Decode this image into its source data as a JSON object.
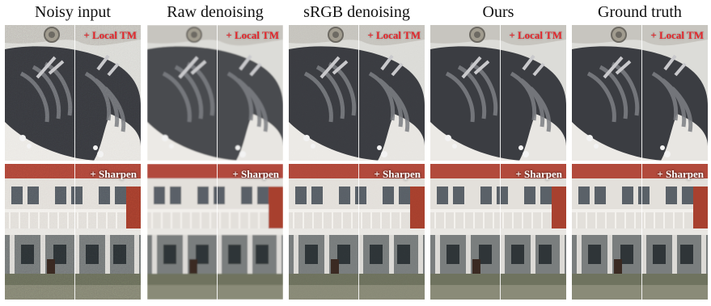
{
  "columns": [
    {
      "title": "Noisy input"
    },
    {
      "title": "Raw denoising"
    },
    {
      "title": "sRGB denoising"
    },
    {
      "title": "Ours"
    },
    {
      "title": "Ground truth"
    }
  ],
  "rows": [
    {
      "overlay": "+ Local TM",
      "overlay_color": "#e5262b"
    },
    {
      "overlay": "+ Sharpen",
      "overlay_color": "#ffffff"
    }
  ]
}
